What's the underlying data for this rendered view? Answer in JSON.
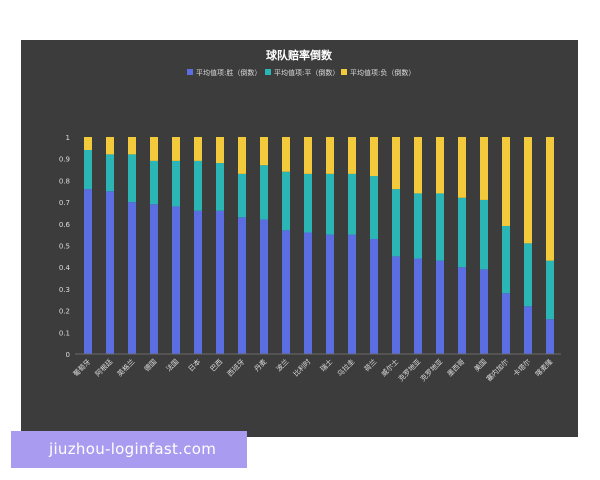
{
  "watermark": {
    "text": "jiuzhou-loginfast.com"
  },
  "chart_data": {
    "type": "bar",
    "stacked": true,
    "title": "球队赔率倒数",
    "legend_position": "top",
    "grid": false,
    "ylim": [
      0,
      1
    ],
    "yticks": [
      "0",
      "0.1",
      "0.2",
      "0.3",
      "0.4",
      "0.5",
      "0.6",
      "0.7",
      "0.8",
      "0.9",
      "1"
    ],
    "categories": [
      "葡萄牙",
      "阿根廷",
      "英格兰",
      "德国",
      "法国",
      "日本",
      "巴西",
      "西班牙",
      "丹麦",
      "波兰",
      "比利时",
      "瑞士",
      "乌拉圭",
      "荷兰",
      "威尔士",
      "克罗地亚",
      "克罗地亚",
      "墨西哥",
      "美国",
      "塞内加尔",
      "卡塔尔",
      "喀麦隆"
    ],
    "colors": {
      "win": "#5b6ee1",
      "draw": "#2bb5b5",
      "loss": "#f2ca3c",
      "background": "#3c3c3c",
      "text": "#dddddd"
    },
    "series": [
      {
        "name": "平均值项:胜（倒数）",
        "color_key": "win",
        "values": [
          0.76,
          0.75,
          0.7,
          0.69,
          0.68,
          0.66,
          0.66,
          0.63,
          0.62,
          0.57,
          0.56,
          0.55,
          0.55,
          0.53,
          0.45,
          0.44,
          0.43,
          0.4,
          0.39,
          0.28,
          0.22,
          0.16
        ]
      },
      {
        "name": "平均值项:平（倒数）",
        "color_key": "draw",
        "values": [
          0.18,
          0.17,
          0.22,
          0.2,
          0.21,
          0.23,
          0.22,
          0.2,
          0.25,
          0.27,
          0.27,
          0.28,
          0.28,
          0.29,
          0.31,
          0.3,
          0.31,
          0.32,
          0.32,
          0.31,
          0.29,
          0.27
        ]
      },
      {
        "name": "平均值项:负（倒数）",
        "color_key": "loss",
        "values": [
          0.06,
          0.08,
          0.08,
          0.11,
          0.11,
          0.11,
          0.12,
          0.17,
          0.13,
          0.16,
          0.17,
          0.17,
          0.17,
          0.18,
          0.24,
          0.26,
          0.26,
          0.28,
          0.29,
          0.41,
          0.49,
          0.57
        ]
      }
    ]
  }
}
